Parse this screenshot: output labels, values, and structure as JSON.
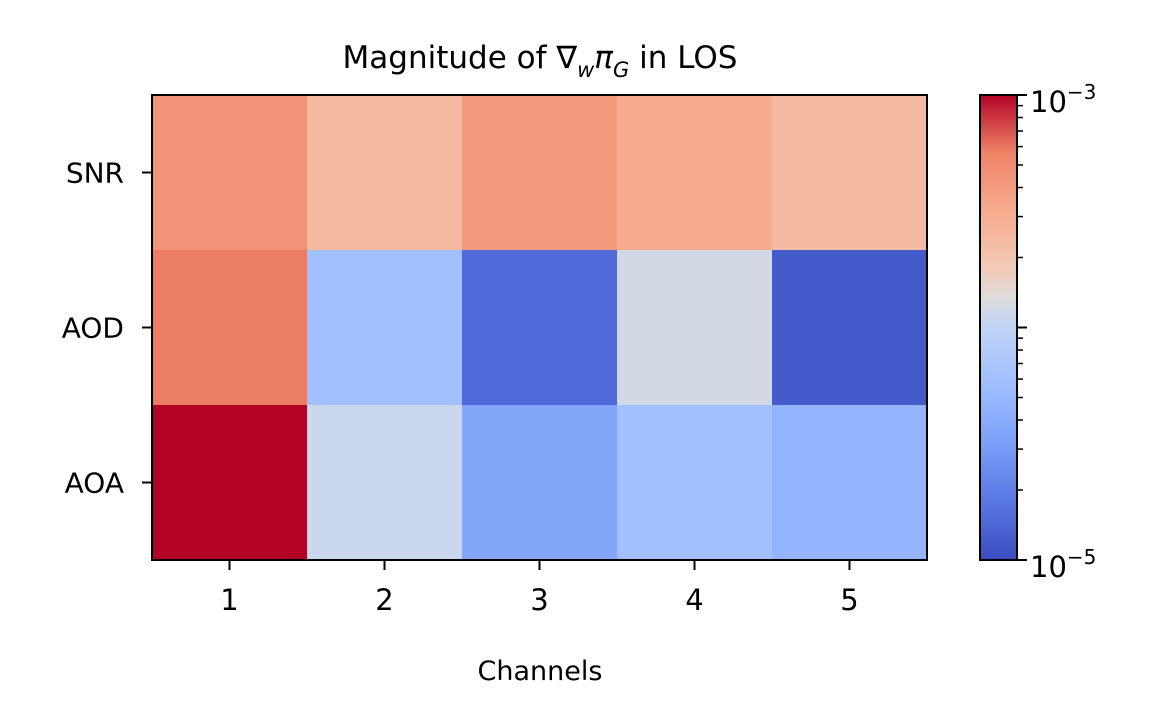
{
  "chart_data": {
    "type": "heatmap",
    "title": "Magnitude of ∇wπG in LOS",
    "title_parts": {
      "prefix": "Magnitude of ∇",
      "w": "w",
      "pi": "π",
      "g": "G",
      "suffix": " in LOS"
    },
    "xlabel": "Channels",
    "ylabel": "",
    "x_categories": [
      "1",
      "2",
      "3",
      "4",
      "5"
    ],
    "y_categories": [
      "SNR",
      "AOD",
      "AOA"
    ],
    "values": [
      [
        0.00045,
        0.00025,
        0.00041,
        0.00032,
        0.00024
      ],
      [
        0.00058,
        6e-05,
        1.5e-05,
        0.00012,
        1.2e-05
      ],
      [
        0.001,
        0.00011,
        3.6e-05,
        6e-05,
        4.8e-05
      ]
    ],
    "colormap": "coolwarm",
    "colorbar": {
      "scale": "log",
      "min": 1e-05,
      "max": 0.001,
      "tick_labels": [
        {
          "base": "10",
          "exp": "−5"
        },
        {
          "base": "10",
          "exp": "−3"
        }
      ]
    },
    "grid": false
  }
}
